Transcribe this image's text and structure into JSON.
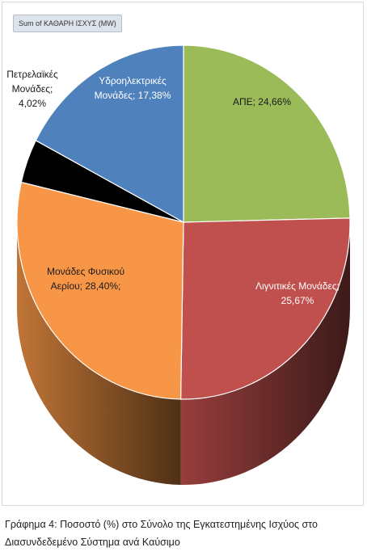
{
  "field_button": "Sum of ΚΑΘΑΡΗ ΙΣΧΥΣ (MW)",
  "caption": "Γράφημα 4: Ποσοστό (%) στο Σύνολο της Εγκατεστημένης Ισχύος στο Διασυνδεδεμένο Σύστημα ανά Καύσιμο",
  "colors": {
    "ape": "#9bbb59",
    "lignite": "#c0504d",
    "natural_gas": "#f79646",
    "oil": "#000000",
    "hydro": "#4f81bd"
  },
  "chart_data": {
    "type": "pie",
    "title": "",
    "series_name": "Sum of ΚΑΘΑΡΗ ΙΣΧΥΣ (MW)",
    "slices": [
      {
        "key": "ape",
        "name": "ΑΠΕ",
        "value": 24.66,
        "label_lines": [
          "ΑΠΕ; 24,66%"
        ]
      },
      {
        "key": "lignite",
        "name": "Λιγνιτικές Μονάδες",
        "value": 25.67,
        "label_lines": [
          "Λιγνιτικές Μονάδες;",
          "25,67%"
        ]
      },
      {
        "key": "natural_gas",
        "name": "Μονάδες Φυσικού Αερίου",
        "value": 28.4,
        "label_lines": [
          "Μονάδες Φυσικού",
          "Αερίου; 28,40%;"
        ]
      },
      {
        "key": "oil",
        "name": "Πετρελαϊκές Μονάδες",
        "value": 4.02,
        "label_lines": [
          "Πετρελαϊκές",
          "Μονάδες;",
          "4,02%"
        ]
      },
      {
        "key": "hydro",
        "name": "Υδροηλεκτρικές Μονάδες",
        "value": 17.38,
        "label_lines": [
          "Υδροηλεκτρικές",
          "Μονάδες; 17,38%"
        ]
      }
    ]
  }
}
